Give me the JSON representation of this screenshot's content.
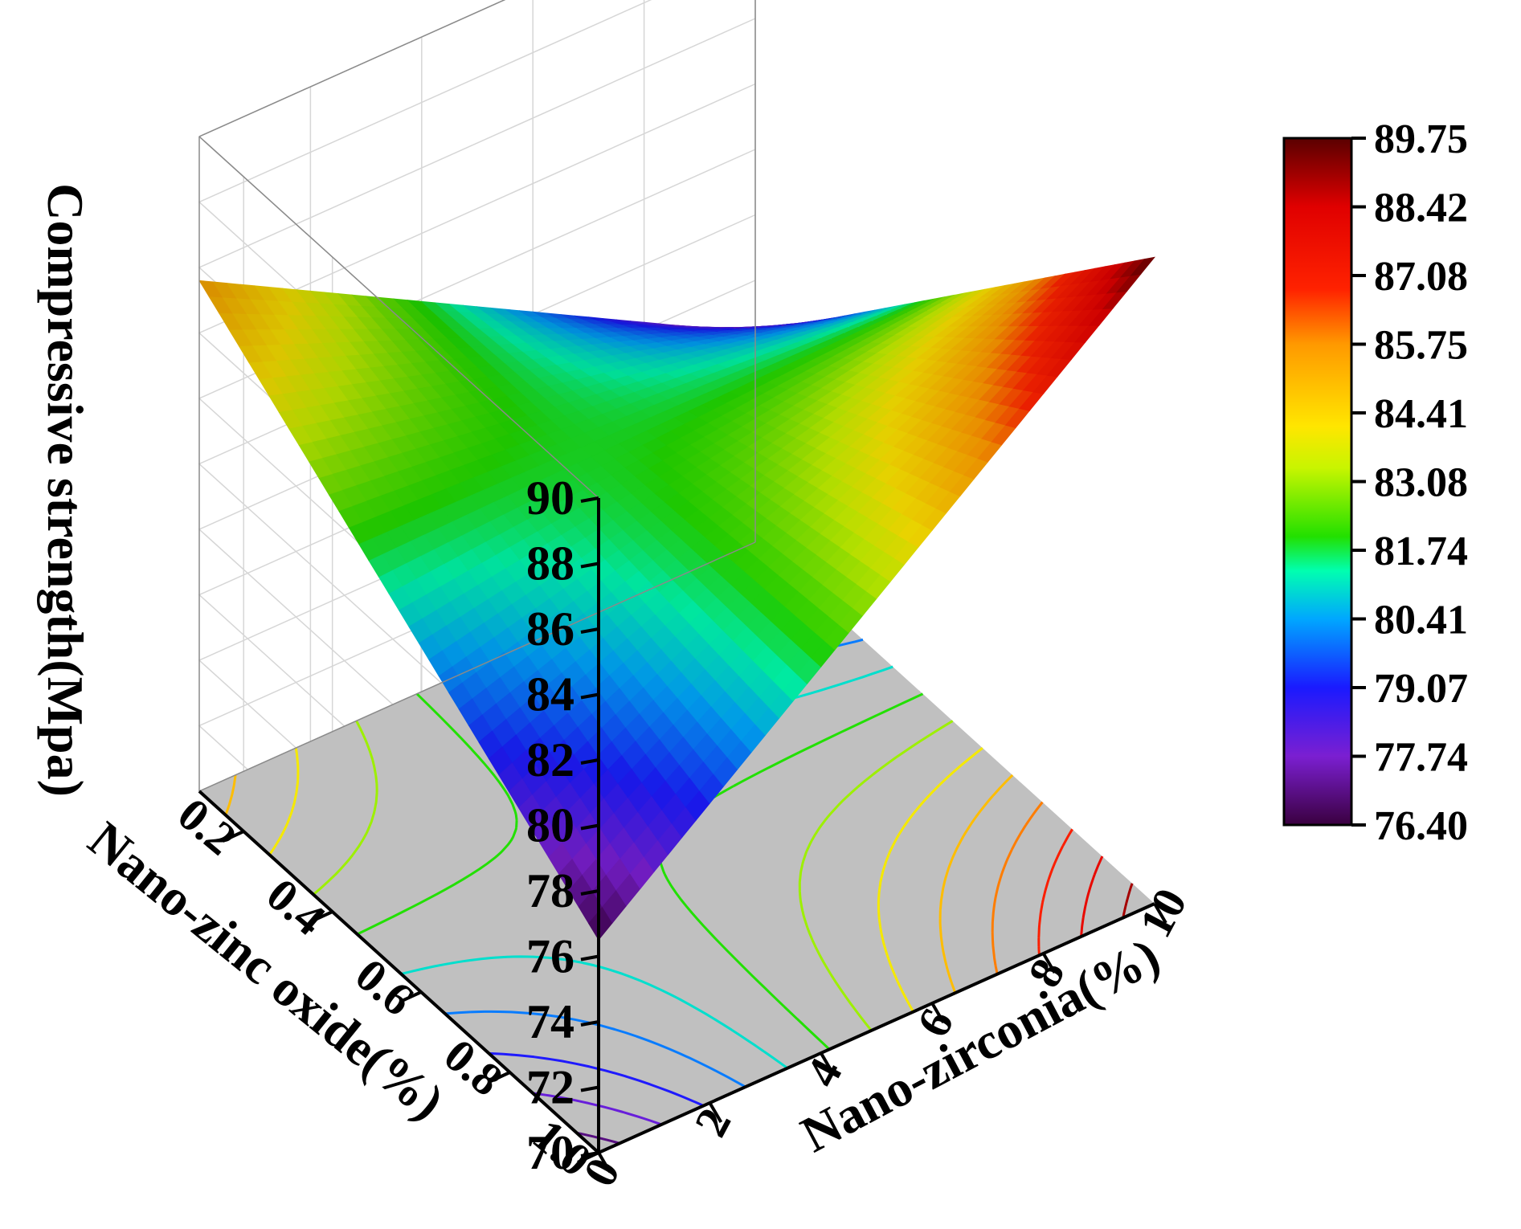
{
  "chart_data": {
    "type": "surface3d",
    "x_axis": {
      "label": "Nano-zirconia(%)",
      "range": [
        0,
        10
      ],
      "ticks": [
        "0",
        "2",
        "4",
        "6",
        "8",
        "10"
      ]
    },
    "y_axis": {
      "label": "Nano-zinc oxide(%)",
      "range": [
        0.1,
        1.0
      ],
      "ticks": [
        "0.2",
        "0.4",
        "0.6",
        "0.8",
        "1.0"
      ]
    },
    "z_axis": {
      "label": "Compressive strength(Mpa)",
      "range": [
        70,
        90
      ],
      "ticks": [
        "70",
        "72",
        "74",
        "76",
        "78",
        "80",
        "82",
        "84",
        "86",
        "88",
        "90"
      ]
    },
    "colorbar": {
      "range": [
        76.4,
        89.75
      ],
      "ticks": [
        "76.40",
        "77.74",
        "79.07",
        "80.41",
        "81.74",
        "83.08",
        "84.41",
        "85.75",
        "87.08",
        "88.42",
        "89.75"
      ],
      "colormap": [
        "#3a003f",
        "#7b1fd1",
        "#1a1aff",
        "#00a7ff",
        "#00ffb0",
        "#22e000",
        "#c8f500",
        "#ffe600",
        "#ff9900",
        "#ff2200",
        "#e00000",
        "#5a0000"
      ]
    },
    "corner_values": [
      {
        "zirconia": 0,
        "zinc_oxide": 0.1,
        "strength": 85.6
      },
      {
        "zirconia": 10,
        "zinc_oxide": 0.1,
        "strength": 76.4
      },
      {
        "zirconia": 0,
        "zinc_oxide": 1.0,
        "strength": 76.5
      },
      {
        "zirconia": 10,
        "zinc_oxide": 1.0,
        "strength": 89.75
      }
    ],
    "floor_color": "#c0c0c0",
    "grid": true
  }
}
